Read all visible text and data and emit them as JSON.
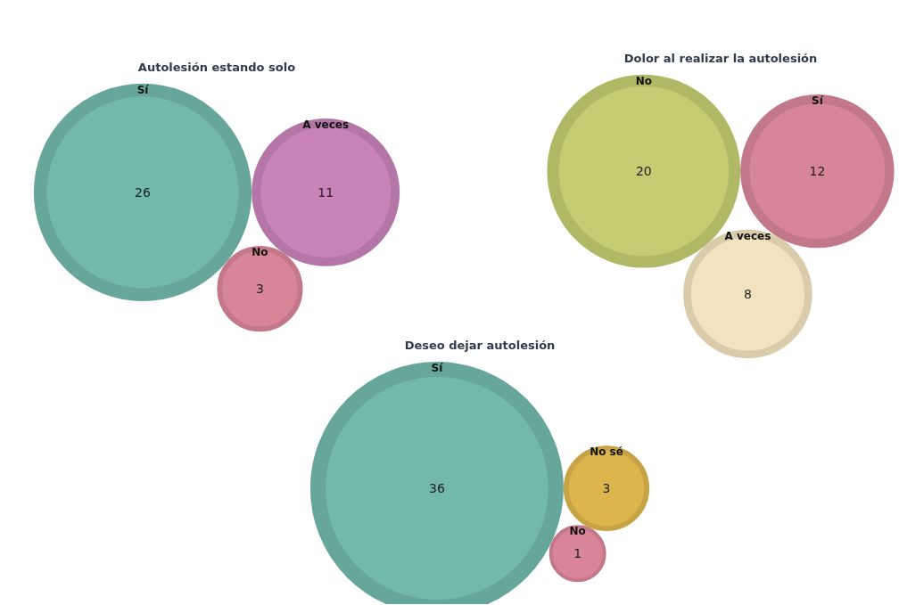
{
  "chart_data": [
    {
      "type": "other",
      "title": "Autolesión estando solo",
      "categories": [
        "Sí",
        "A veces",
        "No"
      ],
      "values": [
        26,
        11,
        3
      ],
      "colors": [
        "#72b9ac",
        "#c883b9",
        "#d88597"
      ],
      "data_labels": true
    },
    {
      "type": "other",
      "title": "Dolor al realizar la autolesión",
      "categories": [
        "No",
        "Sí",
        "A veces"
      ],
      "values": [
        20,
        12,
        8
      ],
      "colors": [
        "#c4cb70",
        "#d88597",
        "#f2e2bd"
      ],
      "data_labels": true
    },
    {
      "type": "other",
      "title": "Deseo dejar autolesión",
      "categories": [
        "Sí",
        "No sé",
        "No"
      ],
      "values": [
        36,
        3,
        1
      ],
      "colors": [
        "#72b9ac",
        "#dcb54d",
        "#d88597"
      ],
      "data_labels": true
    }
  ]
}
